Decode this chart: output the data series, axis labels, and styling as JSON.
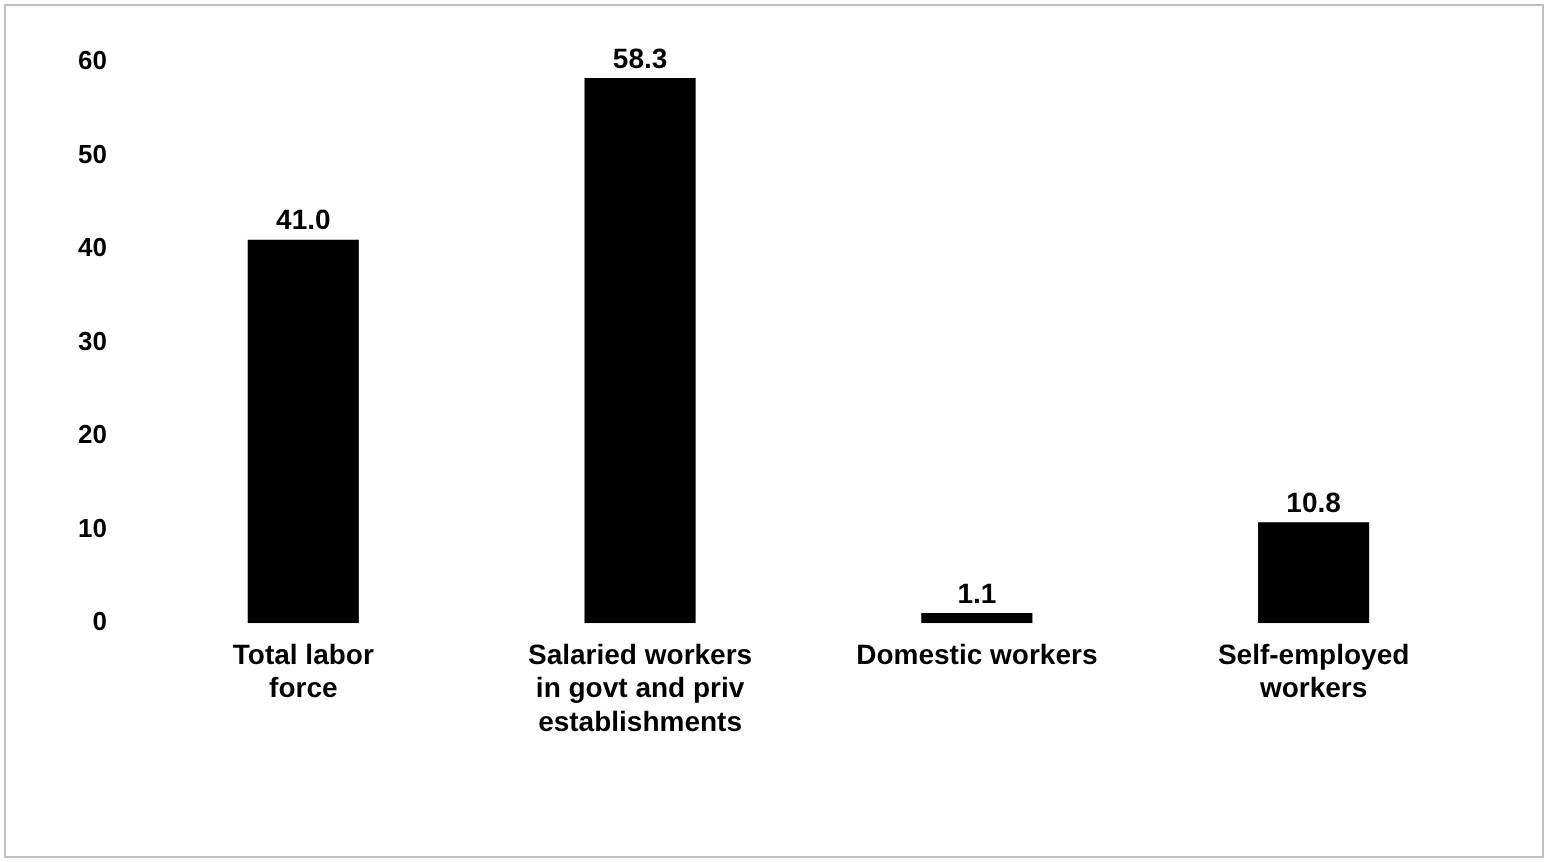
{
  "chart_data": {
    "type": "bar",
    "categories": [
      "Total labor force",
      "Salaried workers in govt and priv establishments",
      "Domestic workers",
      "Self-employed workers"
    ],
    "values": [
      41.0,
      58.3,
      1.1,
      10.8
    ],
    "color": "#000000",
    "ylim": [
      0,
      60
    ],
    "yticks": [
      0,
      10,
      20,
      30,
      40,
      50,
      60
    ],
    "grid": false,
    "legend": false,
    "value_labels": [
      "41.0",
      "58.3",
      "1.1",
      "10.8"
    ]
  }
}
